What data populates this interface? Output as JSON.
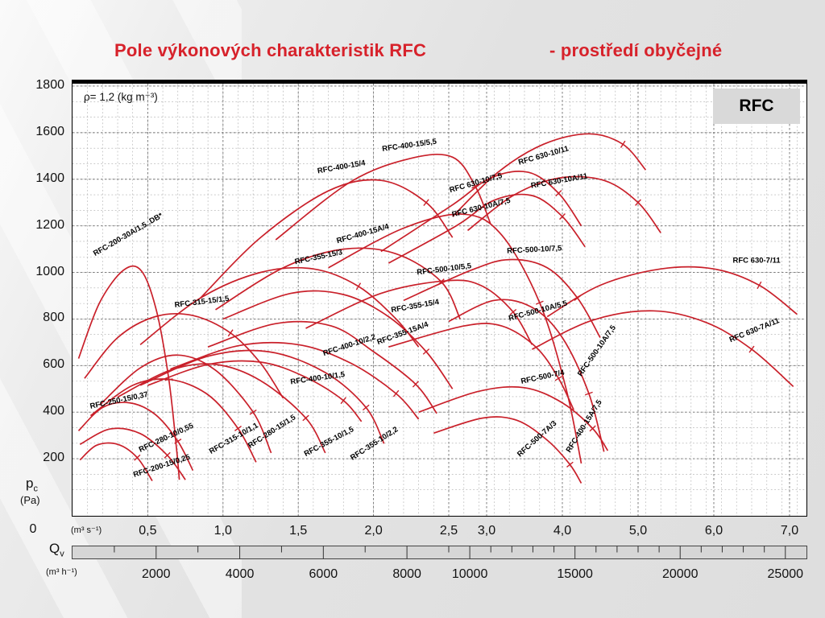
{
  "page": {
    "title_main": "Pole výkonových charakteristik RFC",
    "title_sub": "- prostředí obyčejné",
    "density_note": "ρ= 1,2 (kg m⁻³)",
    "corner_label": "RFC"
  },
  "axes": {
    "y_name": "p",
    "y_name_sub": "c",
    "y_unit": "(Pa)",
    "y_zero": "0",
    "y_ticks": [
      {
        "p": 1800,
        "label": "1800"
      },
      {
        "p": 1600,
        "label": "1600"
      },
      {
        "p": 1400,
        "label": "1400"
      },
      {
        "p": 1200,
        "label": "1200"
      },
      {
        "p": 1000,
        "label": "1000"
      },
      {
        "p": 800,
        "label": "800"
      },
      {
        "p": 600,
        "label": "600"
      },
      {
        "p": 400,
        "label": "400"
      },
      {
        "p": 200,
        "label": "200"
      }
    ],
    "x1_unit": "(m³ s⁻¹)",
    "x1_ticks": [
      {
        "q": 0.5,
        "label": "0,5"
      },
      {
        "q": 1,
        "label": "1,0"
      },
      {
        "q": 1.5,
        "label": "1,5"
      },
      {
        "q": 2,
        "label": "2,0"
      },
      {
        "q": 2.5,
        "label": "2,5"
      },
      {
        "q": 3,
        "label": "3,0"
      },
      {
        "q": 4,
        "label": "4,0"
      },
      {
        "q": 5,
        "label": "5,0"
      },
      {
        "q": 6,
        "label": "6,0"
      },
      {
        "q": 7,
        "label": "7,0"
      }
    ],
    "x2_name": "Q",
    "x2_name_sub": "v",
    "x2_unit": "(m³ h⁻¹)",
    "x2_ticks": [
      {
        "v": 2000,
        "label": "2000"
      },
      {
        "v": 4000,
        "label": "4000"
      },
      {
        "v": 6000,
        "label": "6000"
      },
      {
        "v": 8000,
        "label": "8000"
      },
      {
        "v": 10000,
        "label": "10000"
      },
      {
        "v": 15000,
        "label": "15000"
      },
      {
        "v": 20000,
        "label": "20000"
      },
      {
        "v": 25000,
        "label": "25000"
      }
    ]
  },
  "chart_data": {
    "type": "line",
    "title": "Pole výkonových charakteristik RFC - prostředí obyčejné",
    "xlabel": "Qv (m³ s⁻¹ / m³ h⁻¹)",
    "ylabel": "pc (Pa)",
    "xlim": [
      0,
      7.2
    ],
    "ylim": [
      0,
      1800
    ],
    "x_scale_break": {
      "at": 2.5,
      "note": "x axis compressed beyond 2,5 m³ s⁻¹"
    },
    "grid": true,
    "density": "ρ = 1,2 kg m⁻³",
    "series": [
      {
        "name": "RFC-200-15/0,25",
        "points": [
          [
            0.05,
            195
          ],
          [
            0.16,
            258
          ],
          [
            0.3,
            262
          ],
          [
            0.43,
            205
          ],
          [
            0.53,
            105
          ]
        ],
        "label": {
          "q": 0.41,
          "p": 121,
          "angle": -18
        }
      },
      {
        "name": "RFC-280-10/0,55",
        "points": [
          [
            0.05,
            262
          ],
          [
            0.25,
            328
          ],
          [
            0.45,
            308
          ],
          [
            0.63,
            215
          ],
          [
            0.75,
            110
          ]
        ],
        "label": {
          "q": 0.45,
          "p": 228,
          "angle": -25
        }
      },
      {
        "name": "RFC-250-15/0,37",
        "points": [
          [
            0.04,
            320
          ],
          [
            0.2,
            420
          ],
          [
            0.38,
            440
          ],
          [
            0.55,
            390
          ],
          [
            0.7,
            275
          ],
          [
            0.8,
            150
          ]
        ],
        "label": {
          "q": 0.12,
          "p": 415,
          "angle": -12
        }
      },
      {
        "name": "RFC-315-10/1,1",
        "points": [
          [
            0.12,
            385
          ],
          [
            0.4,
            515
          ],
          [
            0.65,
            540
          ],
          [
            0.9,
            475
          ],
          [
            1.1,
            330
          ],
          [
            1.22,
            185
          ]
        ],
        "label": {
          "q": 0.92,
          "p": 220,
          "angle": -30
        }
      },
      {
        "name": "RFC-280-15/1,5",
        "points": [
          [
            0.18,
            430
          ],
          [
            0.45,
            590
          ],
          [
            0.7,
            645
          ],
          [
            0.95,
            580
          ],
          [
            1.2,
            400
          ],
          [
            1.32,
            225
          ]
        ],
        "label": {
          "q": 1.18,
          "p": 245,
          "angle": -33
        }
      },
      {
        "name": "RFC-355-10/1,5",
        "points": [
          [
            0.3,
            465
          ],
          [
            0.65,
            580
          ],
          [
            0.95,
            605
          ],
          [
            1.25,
            535
          ],
          [
            1.55,
            375
          ],
          [
            1.68,
            225
          ]
        ],
        "label": {
          "q": 1.55,
          "p": 210,
          "angle": -28
        }
      },
      {
        "name": "RFC-355-10/2,2",
        "points": [
          [
            0.45,
            515
          ],
          [
            0.9,
            640
          ],
          [
            1.3,
            660
          ],
          [
            1.68,
            570
          ],
          [
            1.95,
            420
          ],
          [
            2.07,
            265
          ]
        ],
        "label": {
          "q": 1.86,
          "p": 193,
          "angle": -33
        }
      },
      {
        "name": "RFC-400-10/1,5",
        "points": [
          [
            0.5,
            515
          ],
          [
            0.9,
            605
          ],
          [
            1.25,
            615
          ],
          [
            1.55,
            550
          ],
          [
            1.8,
            450
          ],
          [
            1.92,
            360
          ]
        ],
        "label": {
          "q": 1.45,
          "p": 520,
          "angle": -8
        }
      },
      {
        "name": "RFC-400-10/2,2",
        "points": [
          [
            0.65,
            585
          ],
          [
            1.1,
            685
          ],
          [
            1.5,
            690
          ],
          [
            1.85,
            610
          ],
          [
            2.15,
            480
          ],
          [
            2.3,
            370
          ]
        ],
        "label": {
          "q": 1.67,
          "p": 642,
          "angle": -18
        }
      },
      {
        "name": "RFC-315-15/1,5",
        "points": [
          [
            0.08,
            545
          ],
          [
            0.3,
            720
          ],
          [
            0.55,
            810
          ],
          [
            0.8,
            815
          ],
          [
            1.05,
            740
          ],
          [
            1.25,
            610
          ],
          [
            1.4,
            460
          ]
        ],
        "label": {
          "q": 0.68,
          "p": 850,
          "angle": -7
        }
      },
      {
        "name": "RFC-200-30A/1,5..DB*",
        "points": [
          [
            0.04,
            630
          ],
          [
            0.18,
            870
          ],
          [
            0.34,
            1010
          ],
          [
            0.46,
            1005
          ],
          [
            0.56,
            830
          ],
          [
            0.64,
            540
          ],
          [
            0.69,
            250
          ],
          [
            0.71,
            110
          ]
        ],
        "label": {
          "q": 0.15,
          "p": 1070,
          "angle": -30
        }
      },
      {
        "name": "RFC-355-15/3",
        "points": [
          [
            0.45,
            690
          ],
          [
            0.85,
            890
          ],
          [
            1.25,
            1000
          ],
          [
            1.6,
            1015
          ],
          [
            1.9,
            940
          ],
          [
            2.15,
            800
          ],
          [
            2.3,
            680
          ]
        ],
        "label": {
          "q": 1.48,
          "p": 1035,
          "angle": -12
        }
      },
      {
        "name": "RFC-355-15/4",
        "points": [
          [
            1.0,
            800
          ],
          [
            1.45,
            910
          ],
          [
            1.8,
            905
          ],
          [
            2.1,
            810
          ],
          [
            2.35,
            660
          ],
          [
            2.55,
            500
          ]
        ],
        "label": {
          "q": 2.12,
          "p": 828,
          "angle": -10
        }
      },
      {
        "name": "RFC-355-15A/4",
        "points": [
          [
            0.9,
            680
          ],
          [
            1.35,
            780
          ],
          [
            1.72,
            770
          ],
          [
            2.0,
            660
          ],
          [
            2.28,
            520
          ],
          [
            2.42,
            395
          ]
        ],
        "label": {
          "q": 2.03,
          "p": 690,
          "angle": -20
        }
      },
      {
        "name": "RFC-400-15/4",
        "points": [
          [
            0.85,
            890
          ],
          [
            1.25,
            1150
          ],
          [
            1.7,
            1350
          ],
          [
            2.05,
            1395
          ],
          [
            2.35,
            1300
          ],
          [
            2.55,
            1150
          ]
        ],
        "label": {
          "q": 1.63,
          "p": 1425,
          "angle": -10
        }
      },
      {
        "name": "RFC-400-15/5,5",
        "points": [
          [
            1.35,
            1140
          ],
          [
            1.85,
            1390
          ],
          [
            2.25,
            1490
          ],
          [
            2.55,
            1495
          ],
          [
            2.85,
            1370
          ],
          [
            3.05,
            1210
          ]
        ],
        "label": {
          "q": 2.06,
          "p": 1520,
          "angle": -8
        }
      },
      {
        "name": "RFC-400-15A/4",
        "points": [
          [
            0.95,
            840
          ],
          [
            1.4,
            1020
          ],
          [
            1.8,
            1100
          ],
          [
            2.15,
            1080
          ],
          [
            2.45,
            960
          ],
          [
            2.65,
            800
          ]
        ],
        "label": {
          "q": 1.76,
          "p": 1125,
          "angle": -16
        }
      },
      {
        "name": "RFC-400-15A/7,5",
        "points": [
          [
            1.7,
            1020
          ],
          [
            2.2,
            1190
          ],
          [
            2.7,
            1250
          ],
          [
            3.2,
            1160
          ],
          [
            3.7,
            870
          ],
          [
            4.05,
            500
          ],
          [
            4.25,
            180
          ]
        ],
        "label": {
          "q": 4.1,
          "p": 225,
          "angle": -58
        }
      },
      {
        "name": "RFC-500-10/5,5",
        "points": [
          [
            1.55,
            760
          ],
          [
            2.05,
            910
          ],
          [
            2.5,
            965
          ],
          [
            2.95,
            940
          ],
          [
            3.35,
            830
          ],
          [
            3.6,
            690
          ]
        ],
        "label": {
          "q": 2.29,
          "p": 990,
          "angle": -7
        }
      },
      {
        "name": "RFC-500-10/7,5",
        "points": [
          [
            2.2,
            880
          ],
          [
            2.8,
            1010
          ],
          [
            3.3,
            1055
          ],
          [
            3.8,
            1020
          ],
          [
            4.2,
            890
          ],
          [
            4.5,
            720
          ]
        ],
        "label": {
          "q": 3.27,
          "p": 1082,
          "angle": -3
        }
      },
      {
        "name": "RFC-500-10A/5,5",
        "points": [
          [
            2.1,
            680
          ],
          [
            2.7,
            770
          ],
          [
            3.2,
            770
          ],
          [
            3.65,
            680
          ],
          [
            3.95,
            545
          ],
          [
            4.15,
            410
          ]
        ],
        "label": {
          "q": 3.3,
          "p": 792,
          "angle": -15
        }
      },
      {
        "name": "RFC-500-10A/7,5",
        "points": [
          [
            2.5,
            790
          ],
          [
            3.1,
            880
          ],
          [
            3.6,
            850
          ],
          [
            4.0,
            720
          ],
          [
            4.35,
            480
          ],
          [
            4.55,
            230
          ]
        ],
        "label": {
          "q": 4.25,
          "p": 552,
          "angle": -55
        }
      },
      {
        "name": "RFC-500-7/4",
        "points": [
          [
            2.3,
            400
          ],
          [
            2.9,
            490
          ],
          [
            3.5,
            505
          ],
          [
            4.0,
            440
          ],
          [
            4.4,
            330
          ],
          [
            4.6,
            235
          ]
        ],
        "label": {
          "q": 3.46,
          "p": 522,
          "angle": -12
        }
      },
      {
        "name": "RFC-500-7A/3",
        "points": [
          [
            2.4,
            310
          ],
          [
            2.95,
            375
          ],
          [
            3.4,
            365
          ],
          [
            3.8,
            280
          ],
          [
            4.1,
            175
          ],
          [
            4.25,
            95
          ]
        ],
        "label": {
          "q": 3.44,
          "p": 207,
          "angle": -42
        }
      },
      {
        "name": "RFC 630-10/7,5",
        "points": [
          [
            2.05,
            1090
          ],
          [
            2.55,
            1290
          ],
          [
            3.05,
            1405
          ],
          [
            3.55,
            1430
          ],
          [
            3.95,
            1340
          ],
          [
            4.25,
            1200
          ]
        ],
        "label": {
          "q": 2.52,
          "p": 1343,
          "angle": -16
        }
      },
      {
        "name": "RFC 630-10/11",
        "points": [
          [
            2.55,
            1240
          ],
          [
            3.15,
            1430
          ],
          [
            3.75,
            1550
          ],
          [
            4.35,
            1595
          ],
          [
            4.8,
            1550
          ],
          [
            5.1,
            1440
          ]
        ],
        "label": {
          "q": 3.43,
          "p": 1462,
          "angle": -16
        }
      },
      {
        "name": "RFC 630-10A/7,5",
        "points": [
          [
            2.1,
            1040
          ],
          [
            2.6,
            1200
          ],
          [
            3.1,
            1310
          ],
          [
            3.6,
            1330
          ],
          [
            4.0,
            1240
          ],
          [
            4.3,
            1110
          ]
        ],
        "label": {
          "q": 2.55,
          "p": 1238,
          "angle": -14
        }
      },
      {
        "name": "RFC 630-10A/11",
        "points": [
          [
            2.75,
            1180
          ],
          [
            3.35,
            1330
          ],
          [
            3.95,
            1405
          ],
          [
            4.55,
            1395
          ],
          [
            5.0,
            1300
          ],
          [
            5.3,
            1170
          ]
        ],
        "label": {
          "q": 3.59,
          "p": 1362,
          "angle": -10
        }
      },
      {
        "name": "RFC 630-7/11",
        "points": [
          [
            3.8,
            810
          ],
          [
            4.5,
            945
          ],
          [
            5.3,
            1015
          ],
          [
            6.0,
            1015
          ],
          [
            6.6,
            945
          ],
          [
            7.1,
            820
          ]
        ],
        "label": {
          "q": 6.25,
          "p": 1042,
          "angle": 0
        }
      },
      {
        "name": "RFC 630-7A/11",
        "points": [
          [
            3.6,
            670
          ],
          [
            4.4,
            795
          ],
          [
            5.2,
            835
          ],
          [
            5.9,
            785
          ],
          [
            6.5,
            670
          ],
          [
            7.05,
            510
          ]
        ],
        "label": {
          "q": 6.22,
          "p": 700,
          "angle": -22
        }
      }
    ]
  },
  "colors": {
    "curve": "#c9202a",
    "title": "#d7222b",
    "grid_minor": "#a8a8a8",
    "grid_major": "#707070",
    "band": "#d6d6d6",
    "rfc_box": "#d9d9d9"
  }
}
